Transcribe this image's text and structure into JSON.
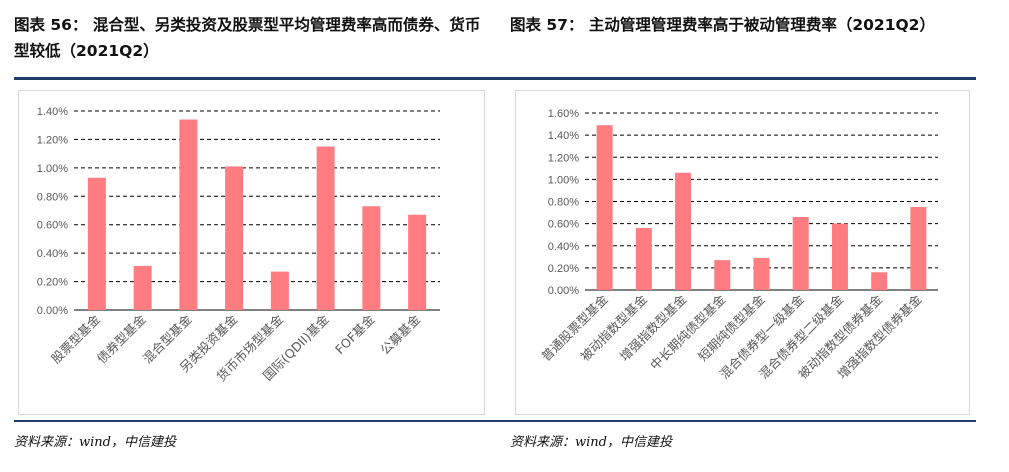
{
  "left": {
    "title": "图表 56：  混合型、另类投资及股票型平均管理费率高而债券、货币型较低（2021Q2）",
    "source": "资料来源：wind，中信建投"
  },
  "right": {
    "title": "图表 57：  主动管理管理费率高于被动管理费率（2021Q2）",
    "source": "资料来源：wind，中信建投"
  },
  "colors": {
    "bar": "#FF7C80",
    "grid": "#000000",
    "rule": "#1f3d6b"
  },
  "chart_data": [
    {
      "type": "bar",
      "categories": [
        "股票型基金",
        "债券型基金",
        "混合型基金",
        "另类投资基金",
        "货币市场型基金",
        "国际(QDII)基金",
        "FOF基金",
        "公募基金"
      ],
      "values": [
        0.93,
        0.31,
        1.34,
        1.01,
        0.27,
        1.15,
        0.73,
        0.67
      ],
      "y_ticks": [
        "0.00%",
        "0.20%",
        "0.40%",
        "0.60%",
        "0.80%",
        "1.00%",
        "1.20%",
        "1.40%"
      ],
      "ylim": [
        0,
        1.4
      ],
      "grid": true,
      "legend": "none"
    },
    {
      "type": "bar",
      "categories": [
        "普通股票型基金",
        "被动指数型基金",
        "增强指数型基金",
        "中长期纯债型基金",
        "短期纯债型基金",
        "混合债券型一级基金",
        "混合债券型二级基金",
        "被动指数型债券基金",
        "增强指数型债券基金"
      ],
      "values": [
        1.49,
        0.56,
        1.06,
        0.27,
        0.29,
        0.66,
        0.6,
        0.16,
        0.75
      ],
      "y_ticks": [
        "0.00%",
        "0.20%",
        "0.40%",
        "0.60%",
        "0.80%",
        "1.00%",
        "1.20%",
        "1.40%",
        "1.60%"
      ],
      "ylim": [
        0,
        1.6
      ],
      "grid": true,
      "legend": "none"
    }
  ]
}
